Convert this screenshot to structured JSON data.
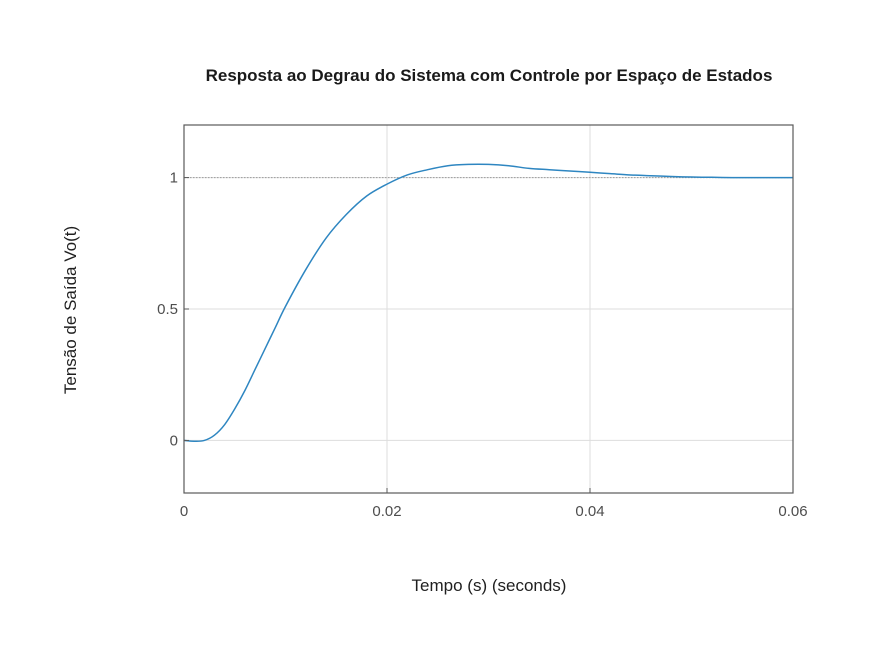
{
  "chart_data": {
    "type": "line",
    "title": "Resposta ao Degrau do Sistema com Controle por Espaço de Estados",
    "xlabel": "Tempo (s) (seconds)",
    "ylabel": "Tensão de Saída Vo(t)",
    "xlim": [
      0,
      0.06
    ],
    "ylim": [
      -0.2,
      1.2
    ],
    "xticks": [
      0,
      0.02,
      0.04,
      0.06
    ],
    "xtick_labels": [
      "0",
      "0.02",
      "0.04",
      "0.06"
    ],
    "yticks": [
      0,
      0.5,
      1
    ],
    "ytick_labels": [
      "0",
      "0.5",
      "1"
    ],
    "grid": true,
    "reference_line": {
      "y": 1,
      "style": "dotted"
    },
    "series": [
      {
        "color": "#2e86c1",
        "x": [
          0,
          0.001,
          0.002,
          0.003,
          0.004,
          0.005,
          0.006,
          0.007,
          0.008,
          0.009,
          0.01,
          0.012,
          0.014,
          0.016,
          0.018,
          0.02,
          0.022,
          0.024,
          0.026,
          0.028,
          0.03,
          0.032,
          0.034,
          0.036,
          0.038,
          0.04,
          0.042,
          0.044,
          0.046,
          0.048,
          0.05,
          0.052,
          0.054,
          0.056,
          0.058,
          0.06
        ],
        "y": [
          0,
          -0.003,
          0,
          0.02,
          0.06,
          0.12,
          0.19,
          0.27,
          0.35,
          0.43,
          0.51,
          0.65,
          0.77,
          0.86,
          0.93,
          0.975,
          1.01,
          1.03,
          1.045,
          1.05,
          1.05,
          1.045,
          1.035,
          1.03,
          1.025,
          1.02,
          1.015,
          1.01,
          1.007,
          1.004,
          1.002,
          1.001,
          1.0,
          1.0,
          1.0,
          1.0
        ]
      }
    ]
  },
  "colors": {
    "line": "#2e86c1",
    "grid": "#dddddd",
    "axes": "#595959",
    "reference": "#9a9a9a"
  }
}
